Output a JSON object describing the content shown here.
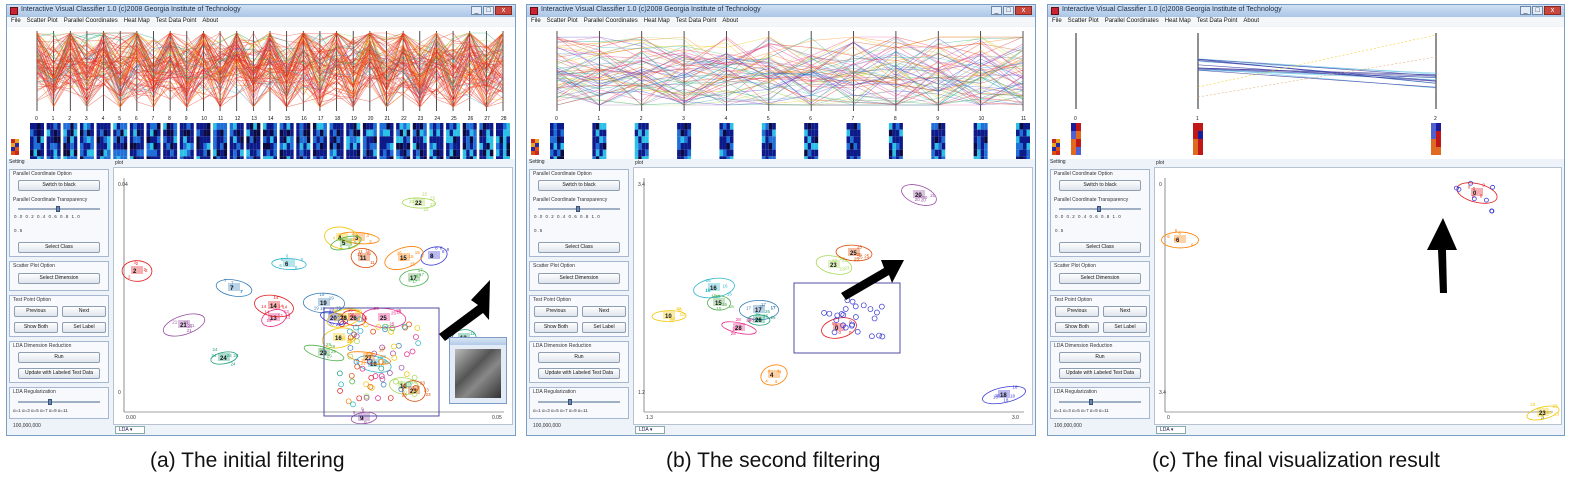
{
  "panels": [
    {
      "id": "a",
      "window_title": "Interactive Visual Classifier 1.0 (c)2008 Georgia Institute of Technology",
      "caption": "(a) The initial filtering",
      "pc_axis_labels": [
        "0",
        "1",
        "2",
        "3",
        "4",
        "5",
        "6",
        "7",
        "8",
        "9",
        "10",
        "11",
        "12",
        "13",
        "14",
        "15",
        "16",
        "17",
        "18",
        "19",
        "20",
        "21",
        "22",
        "23",
        "24",
        "25",
        "26",
        "27",
        "28"
      ],
      "plot_y_top": "0.04",
      "plot_y_bottom": "0",
      "plot_x_left": "0.00",
      "plot_x_right": "0.05",
      "clusters": [
        "2",
        "3",
        "4",
        "5",
        "6",
        "7",
        "8",
        "9",
        "10",
        "11",
        "12",
        "13",
        "14",
        "15",
        "16",
        "17",
        "18",
        "19",
        "20",
        "21",
        "22",
        "23",
        "24",
        "25",
        "26",
        "27",
        "28",
        "29"
      ],
      "has_popup": true
    },
    {
      "id": "b",
      "window_title": "Interactive Visual Classifier 1.0 (c)2008 Georgia Institute of Technology",
      "caption": "(b) The second filtering",
      "pc_axis_labels": [
        "0",
        "1",
        "2",
        "3",
        "4",
        "5",
        "6",
        "7",
        "8",
        "9",
        "10",
        "11"
      ],
      "plot_y_top": "3.4",
      "plot_y_bottom": "1.2",
      "plot_x_left": "1.3",
      "plot_x_right": "3.0",
      "clusters": [
        "0",
        "4",
        "10",
        "15",
        "16",
        "17",
        "18",
        "20",
        "23",
        "25",
        "26",
        "28"
      ],
      "has_popup": false
    },
    {
      "id": "c",
      "window_title": "Interactive Visual Classifier 1.0 (c)2008 Georgia Institute of Technology",
      "caption": "(c) The final visualization result",
      "pc_axis_labels": [
        "0",
        "1",
        "2"
      ],
      "plot_y_top": "0",
      "plot_y_bottom": "3.4",
      "plot_x_left": "0",
      "plot_x_right": "3",
      "clusters": [
        "0",
        "6",
        "23"
      ],
      "has_popup": false
    }
  ],
  "menu": [
    "File",
    "Scatter Plot",
    "Parallel Coordinates",
    "Heat Map",
    "Test Data Point",
    "About"
  ],
  "window_buttons": {
    "minimize": "_",
    "maximize": "□",
    "close": "x"
  },
  "sidebar": {
    "setting_label": "Setting",
    "plot_label": "plot",
    "pc_option_title": "Parallel Coordinate Option",
    "switch_button": "Switch to black",
    "transparency_label": "Parallel Coordinate Transparency",
    "transparency_ticks": "0.0 0.2 0.4 0.6 0.8 1.0",
    "transparency_value": "0.5",
    "select_class_button": "Select Class",
    "scatter_option_title": "Scatter Plot Option",
    "select_dimension_button": "Select Dimension",
    "test_point_title": "Test Point Option",
    "previous_button": "Previous",
    "next_button": "Next",
    "show_both_button": "Show Both",
    "set_label_button": "Set Label",
    "lda_title": "LDA Dimension Reduction",
    "run_button": "Run",
    "update_button": "Update with Labeled Test Data",
    "reg_title": "LDA Regularization",
    "reg_ticks": "α=1 α=3 α=5 α=7 α=9 α=11",
    "status": "100,000,000",
    "lda_tab": "LDA ▾"
  },
  "colors": {
    "frame": "#7b9ec6",
    "selection": "#3c3c9a",
    "arrow": "#000000"
  }
}
